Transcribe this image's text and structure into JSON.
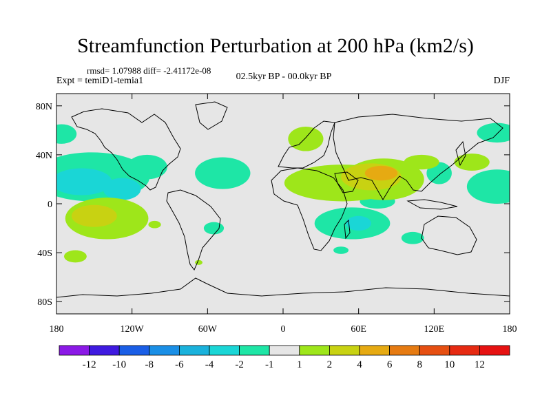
{
  "title": "Streamfunction Perturbation at 200 hPa (km2/s)",
  "stats_line": "rmsd= 1.07988 diff= -2.41172e-08",
  "left_label": "Expt = temiD1-temia1",
  "center_label": "02.5kyr BP - 00.0kyr BP",
  "right_label": "DJF",
  "chart_data": {
    "type": "heatmap",
    "title": "Streamfunction Perturbation at 200 hPa (km2/s)",
    "xlim": [
      -180,
      180
    ],
    "ylim": [
      -90,
      90
    ],
    "x_ticks": [
      -180,
      -120,
      -60,
      0,
      60,
      120,
      180
    ],
    "x_tick_labels": [
      "180",
      "120W",
      "60W",
      "0",
      "60E",
      "120E",
      "180"
    ],
    "y_ticks": [
      80,
      40,
      0,
      -40,
      -80
    ],
    "y_tick_labels": [
      "80N",
      "40N",
      "0",
      "40S",
      "80S"
    ],
    "background_color": "#e6e6e6",
    "colorbar": {
      "labels": [
        "-12",
        "-10",
        "-8",
        "-6",
        "-4",
        "-2",
        "-1",
        "1",
        "2",
        "4",
        "6",
        "8",
        "10",
        "12"
      ],
      "colors": [
        "#8b19e6",
        "#3f1ae0",
        "#1a5ee6",
        "#1a8fe6",
        "#1ab2dc",
        "#1ad6d6",
        "#1ee6a6",
        "#e6e6e6",
        "#9ee61a",
        "#c8d212",
        "#e6aa12",
        "#e67b12",
        "#e64f12",
        "#e62a12",
        "#e61212"
      ]
    },
    "regions": [
      {
        "level": "-2",
        "color": "#1ee6a6",
        "lon": -152,
        "lat": 22,
        "rlon": 46,
        "rlat": 20
      },
      {
        "level": "-2",
        "color": "#1ee6a6",
        "lon": -108,
        "lat": 30,
        "rlon": 16,
        "rlat": 10
      },
      {
        "level": "-4",
        "color": "#1ad6d6",
        "lon": -160,
        "lat": 18,
        "rlon": 24,
        "rlat": 11
      },
      {
        "level": "-4",
        "color": "#1ad6d6",
        "lon": -128,
        "lat": 12,
        "rlon": 15,
        "rlat": 9
      },
      {
        "level": "-2",
        "color": "#1ee6a6",
        "lon": -48,
        "lat": 25,
        "rlon": 22,
        "rlat": 13
      },
      {
        "level": "-2",
        "color": "#1ee6a6",
        "lon": 75,
        "lat": 2,
        "rlon": 14,
        "rlat": 6
      },
      {
        "level": "-2",
        "color": "#1ee6a6",
        "lon": 55,
        "lat": -16,
        "rlon": 30,
        "rlat": 13
      },
      {
        "level": "-4",
        "color": "#1ad6d6",
        "lon": 60,
        "lat": -16,
        "rlon": 10,
        "rlat": 6
      },
      {
        "level": "-2",
        "color": "#1ee6a6",
        "lon": 103,
        "lat": -28,
        "rlon": 9,
        "rlat": 5
      },
      {
        "level": "-2",
        "color": "#1ee6a6",
        "lon": 124,
        "lat": 25,
        "rlon": 10,
        "rlat": 9
      },
      {
        "level": "-2",
        "color": "#1ee6a6",
        "lon": 170,
        "lat": 14,
        "rlon": 24,
        "rlat": 14
      },
      {
        "level": "-2",
        "color": "#1ee6a6",
        "lon": 170,
        "lat": 58,
        "rlon": 16,
        "rlat": 8
      },
      {
        "level": "-2",
        "color": "#1ee6a6",
        "lon": -176,
        "lat": 57,
        "rlon": 12,
        "rlat": 8
      },
      {
        "level": "-2",
        "color": "#1ee6a6",
        "lon": -55,
        "lat": -20,
        "rlon": 8,
        "rlat": 5
      },
      {
        "level": "-2",
        "color": "#1ee6a6",
        "lon": 46,
        "lat": -38,
        "rlon": 6,
        "rlat": 3
      },
      {
        "level": "2",
        "color": "#9ee61a",
        "lon": -140,
        "lat": -12,
        "rlon": 33,
        "rlat": 17
      },
      {
        "level": "4",
        "color": "#c8d212",
        "lon": -150,
        "lat": -10,
        "rlon": 18,
        "rlat": 9
      },
      {
        "level": "2",
        "color": "#9ee61a",
        "lon": -165,
        "lat": -43,
        "rlon": 9,
        "rlat": 5
      },
      {
        "level": "2",
        "color": "#9ee61a",
        "lon": 47,
        "lat": 17,
        "rlon": 46,
        "rlat": 15
      },
      {
        "level": "2",
        "color": "#9ee61a",
        "lon": 80,
        "lat": 20,
        "rlon": 32,
        "rlat": 17
      },
      {
        "level": "4",
        "color": "#c8d212",
        "lon": 70,
        "lat": 22,
        "rlon": 24,
        "rlat": 11
      },
      {
        "level": "6",
        "color": "#e6aa12",
        "lon": 78,
        "lat": 25,
        "rlon": 13,
        "rlat": 6
      },
      {
        "level": "2",
        "color": "#9ee61a",
        "lon": 18,
        "lat": 53,
        "rlon": 14,
        "rlat": 10
      },
      {
        "level": "2",
        "color": "#9ee61a",
        "lon": 110,
        "lat": 34,
        "rlon": 14,
        "rlat": 6
      },
      {
        "level": "2",
        "color": "#9ee61a",
        "lon": 150,
        "lat": 34,
        "rlon": 14,
        "rlat": 7
      },
      {
        "level": "2",
        "color": "#9ee61a",
        "lon": -102,
        "lat": -17,
        "rlon": 5,
        "rlat": 3
      },
      {
        "level": "2",
        "color": "#9ee61a",
        "lon": -67,
        "lat": -48,
        "rlon": 3,
        "rlat": 2
      }
    ]
  }
}
